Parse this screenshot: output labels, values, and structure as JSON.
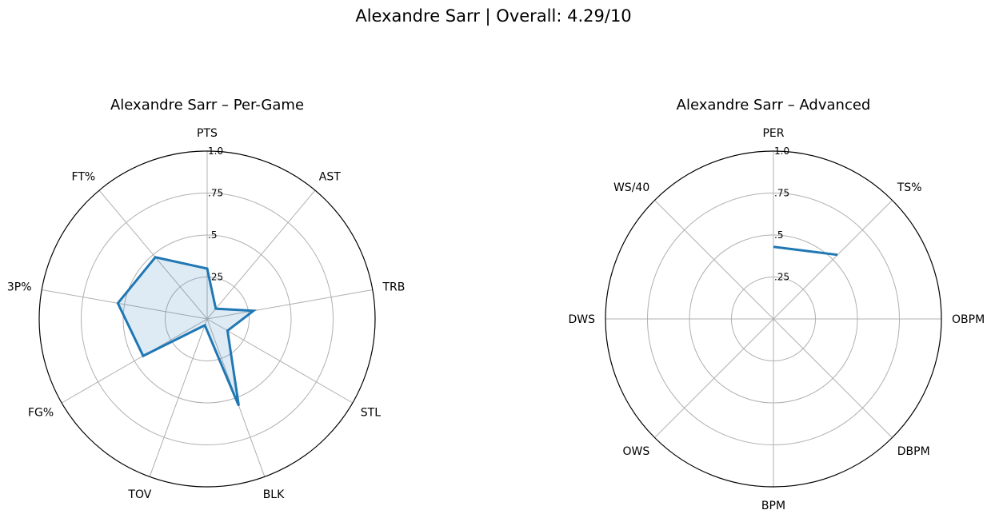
{
  "suptitle": "Alexandre Sarr | Overall: 4.29/10",
  "colors": {
    "series": "#1f77b4",
    "fill": "#1f77b4",
    "grid": "#b0b0b0",
    "frame": "#000000"
  },
  "chart_data": [
    {
      "type": "radar",
      "title": "Alexandre Sarr – Per-Game",
      "categories": [
        "PTS",
        "AST",
        "TRB",
        "STL",
        "BLK",
        "TOV",
        "FG%",
        "3P%",
        "FT%"
      ],
      "rticks": [
        0.25,
        0.5,
        0.75,
        1.0
      ],
      "rtick_labels": [
        ".25",
        ".5",
        ".75",
        "1.0"
      ],
      "rlim": [
        0,
        1
      ],
      "grid": true,
      "filled": true,
      "series": [
        {
          "values": [
            0.3,
            0.08,
            0.28,
            0.14,
            0.55,
            0.04,
            0.44,
            0.54,
            0.48
          ]
        }
      ]
    },
    {
      "type": "radar",
      "title": "Alexandre Sarr – Advanced",
      "categories": [
        "PER",
        "TS%",
        "OBPM",
        "DBPM",
        "BPM",
        "OWS",
        "DWS",
        "WS/40"
      ],
      "rticks": [
        0.25,
        0.5,
        0.75,
        1.0
      ],
      "rtick_labels": [
        ".25",
        ".5",
        ".75",
        "1.0"
      ],
      "rlim": [
        0,
        1
      ],
      "grid": true,
      "filled": false,
      "series": [
        {
          "values": [
            0.43,
            0.54,
            null,
            null,
            null,
            null,
            null,
            null
          ]
        }
      ]
    }
  ]
}
